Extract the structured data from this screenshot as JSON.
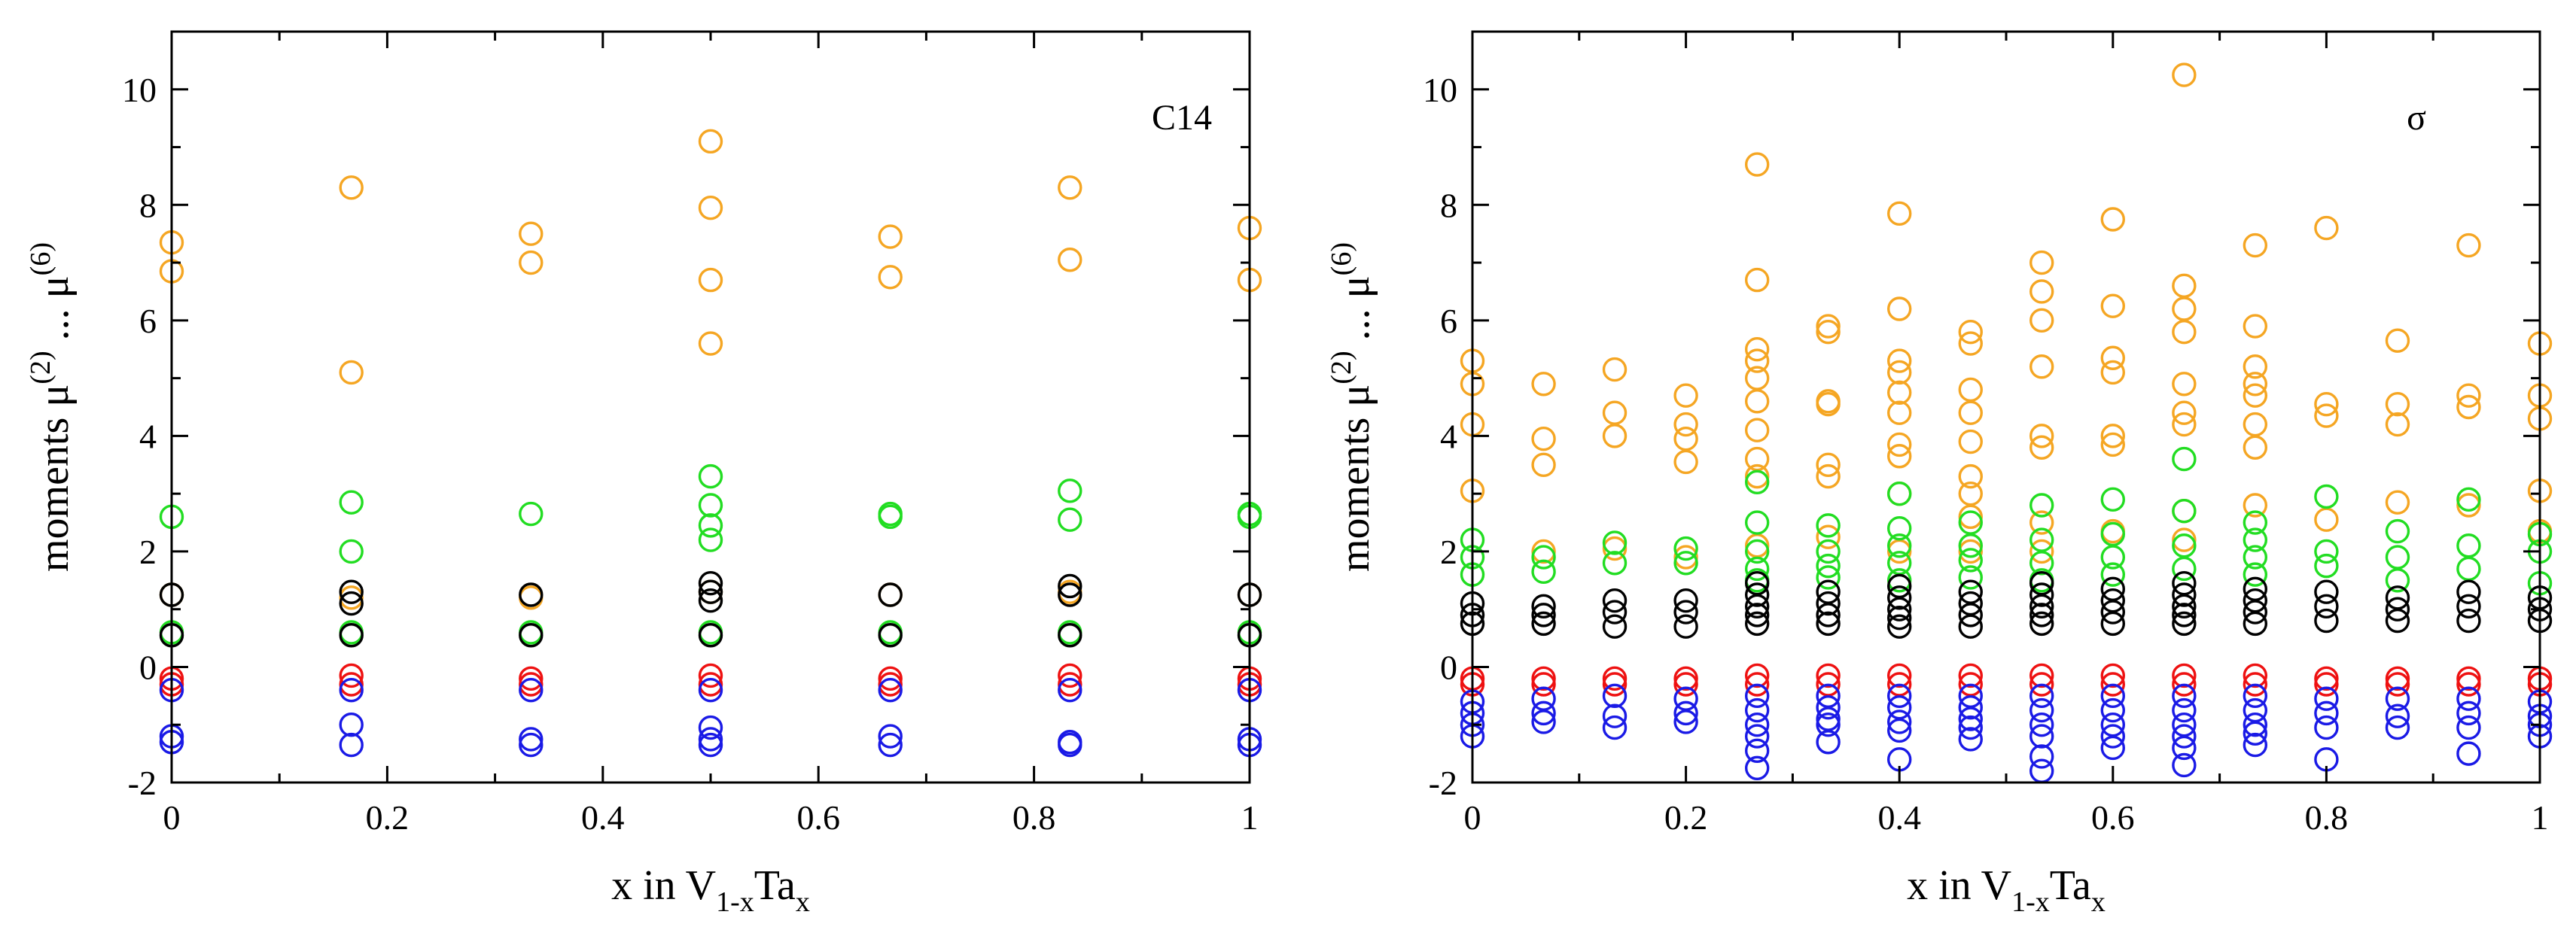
{
  "chart_data": [
    {
      "type": "scatter",
      "panel_label": "C14",
      "xlabel": {
        "base": "x in V",
        "sub1": "1-x",
        "mid": "Ta",
        "sub2": "x"
      },
      "ylabel": {
        "base": "moments μ",
        "sup1": "(2)",
        "mid": " ... μ",
        "sup2": "(6)"
      },
      "xlim": [
        0,
        1
      ],
      "ylim": [
        -2,
        11
      ],
      "xticks": [
        0,
        0.2,
        0.4,
        0.6,
        0.8,
        1
      ],
      "xtick_labels": [
        "0",
        "0.2",
        "0.4",
        "0.6",
        "0.8",
        "1"
      ],
      "yticks": [
        -2,
        0,
        2,
        4,
        6,
        8,
        10
      ],
      "ytick_labels": [
        "-2",
        "0",
        "2",
        "4",
        "6",
        "8",
        "10"
      ],
      "colors": {
        "orange": "#f5a623",
        "green": "#22dd22",
        "black": "#000000",
        "red": "#ee1111",
        "blue": "#1a1ae6"
      },
      "series": [
        {
          "name": "orange",
          "x": [
            0,
            0,
            0,
            0.1667,
            0.1667,
            0.1667,
            0.3333,
            0.3333,
            0.3333,
            0.5,
            0.5,
            0.5,
            0.5,
            0.5,
            0.6667,
            0.6667,
            0.6667,
            0.8333,
            0.8333,
            0.8333,
            1,
            1,
            1
          ],
          "y": [
            7.35,
            6.85,
            1.25,
            8.3,
            5.1,
            1.2,
            7.5,
            7.0,
            1.2,
            9.1,
            7.95,
            6.7,
            5.6,
            1.3,
            7.45,
            6.75,
            1.25,
            8.3,
            7.05,
            1.3,
            7.6,
            6.7,
            1.25
          ]
        },
        {
          "name": "green",
          "x": [
            0,
            0,
            0.1667,
            0.1667,
            0.1667,
            0.3333,
            0.3333,
            0.5,
            0.5,
            0.5,
            0.5,
            0.5,
            0.6667,
            0.6667,
            0.6667,
            0.8333,
            0.8333,
            0.8333,
            1,
            1,
            1
          ],
          "y": [
            2.6,
            0.6,
            2.85,
            2.0,
            0.6,
            2.65,
            0.6,
            3.3,
            2.8,
            2.45,
            2.2,
            0.6,
            2.6,
            2.65,
            0.6,
            3.05,
            2.55,
            0.6,
            2.6,
            2.65,
            0.6
          ]
        },
        {
          "name": "black",
          "x": [
            0,
            0,
            0.1667,
            0.1667,
            0.1667,
            0.3333,
            0.3333,
            0.5,
            0.5,
            0.5,
            0.5,
            0.6667,
            0.6667,
            0.8333,
            0.8333,
            0.8333,
            1,
            1
          ],
          "y": [
            1.25,
            0.55,
            1.3,
            1.1,
            0.55,
            1.25,
            0.55,
            1.45,
            1.3,
            1.15,
            0.55,
            1.25,
            0.55,
            1.4,
            1.25,
            0.55,
            1.25,
            0.55
          ]
        },
        {
          "name": "red",
          "x": [
            0,
            0,
            0.1667,
            0.1667,
            0.3333,
            0.3333,
            0.5,
            0.5,
            0.6667,
            0.6667,
            0.8333,
            0.8333,
            1,
            1
          ],
          "y": [
            -0.2,
            -0.3,
            -0.15,
            -0.3,
            -0.2,
            -0.3,
            -0.15,
            -0.3,
            -0.2,
            -0.3,
            -0.15,
            -0.3,
            -0.2,
            -0.3
          ]
        },
        {
          "name": "blue",
          "x": [
            0,
            0,
            0,
            0.1667,
            0.1667,
            0.1667,
            0.3333,
            0.3333,
            0.3333,
            0.5,
            0.5,
            0.5,
            0.5,
            0.6667,
            0.6667,
            0.6667,
            0.8333,
            0.8333,
            0.8333,
            1,
            1,
            1
          ],
          "y": [
            -0.4,
            -1.2,
            -1.3,
            -0.4,
            -1.0,
            -1.35,
            -0.4,
            -1.25,
            -1.35,
            -0.4,
            -1.05,
            -1.25,
            -1.35,
            -0.4,
            -1.2,
            -1.35,
            -0.4,
            -1.3,
            -1.35,
            -0.4,
            -1.25,
            -1.35
          ]
        }
      ]
    },
    {
      "type": "scatter",
      "panel_label": "σ",
      "xlabel": {
        "base": "x in V",
        "sub1": "1-x",
        "mid": "Ta",
        "sub2": "x"
      },
      "ylabel": {
        "base": "moments μ",
        "sup1": "(2)",
        "mid": " ... μ",
        "sup2": "(6)"
      },
      "xlim": [
        0,
        1
      ],
      "ylim": [
        -2,
        11
      ],
      "xticks": [
        0,
        0.2,
        0.4,
        0.6,
        0.8,
        1
      ],
      "xtick_labels": [
        "0",
        "0.2",
        "0.4",
        "0.6",
        "0.8",
        "1"
      ],
      "yticks": [
        -2,
        0,
        2,
        4,
        6,
        8,
        10
      ],
      "ytick_labels": [
        "-2",
        "0",
        "2",
        "4",
        "6",
        "8",
        "10"
      ],
      "colors": {
        "orange": "#f5a623",
        "green": "#22dd22",
        "black": "#000000",
        "red": "#ee1111",
        "blue": "#1a1ae6"
      },
      "series": [
        {
          "name": "orange",
          "x": [
            0,
            0,
            0,
            0,
            0.0667,
            0.0667,
            0.0667,
            0.0667,
            0.1333,
            0.1333,
            0.1333,
            0.1333,
            0.2,
            0.2,
            0.2,
            0.2,
            0.2,
            0.2667,
            0.2667,
            0.2667,
            0.2667,
            0.2667,
            0.2667,
            0.2667,
            0.2667,
            0.2667,
            0.2667,
            0.3333,
            0.3333,
            0.3333,
            0.3333,
            0.3333,
            0.3333,
            0.3333,
            0.4,
            0.4,
            0.4,
            0.4,
            0.4,
            0.4,
            0.4,
            0.4,
            0.4,
            0.4,
            0.4667,
            0.4667,
            0.4667,
            0.4667,
            0.4667,
            0.4667,
            0.4667,
            0.4667,
            0.4667,
            0.5333,
            0.5333,
            0.5333,
            0.5333,
            0.5333,
            0.5333,
            0.5333,
            0.5333,
            0.6,
            0.6,
            0.6,
            0.6,
            0.6,
            0.6,
            0.6,
            0.6667,
            0.6667,
            0.6667,
            0.6667,
            0.6667,
            0.6667,
            0.6667,
            0.6667,
            0.6667,
            0.7333,
            0.7333,
            0.7333,
            0.7333,
            0.7333,
            0.7333,
            0.7333,
            0.7333,
            0.8,
            0.8,
            0.8,
            0.8,
            0.8667,
            0.8667,
            0.8667,
            0.8667,
            0.9333,
            0.9333,
            0.9333,
            0.9333,
            1,
            1,
            1,
            1,
            1
          ],
          "y": [
            5.3,
            4.9,
            4.2,
            3.05,
            4.9,
            3.95,
            3.5,
            2.0,
            5.15,
            4.4,
            4.0,
            2.05,
            4.7,
            4.2,
            3.95,
            3.55,
            1.9,
            8.7,
            6.7,
            5.5,
            5.3,
            5.0,
            4.6,
            4.1,
            3.6,
            3.3,
            2.1,
            5.9,
            5.8,
            4.6,
            4.55,
            3.5,
            3.3,
            2.25,
            7.85,
            6.2,
            5.3,
            5.1,
            4.75,
            4.4,
            3.85,
            3.65,
            3.0,
            2.0,
            5.8,
            5.6,
            4.8,
            4.4,
            3.9,
            3.3,
            3.0,
            2.6,
            2.0,
            7.0,
            6.5,
            6.0,
            5.2,
            4.0,
            3.8,
            2.5,
            2.0,
            7.75,
            6.25,
            5.35,
            5.1,
            4.0,
            3.85,
            2.35,
            10.25,
            6.6,
            6.2,
            5.8,
            4.9,
            4.4,
            4.2,
            2.7,
            2.2,
            7.3,
            5.9,
            5.2,
            4.9,
            4.7,
            4.2,
            3.8,
            2.8,
            7.6,
            4.55,
            4.35,
            2.55,
            5.65,
            4.55,
            4.2,
            2.85,
            7.3,
            4.7,
            4.5,
            2.8,
            5.6,
            4.7,
            4.3,
            3.05,
            2.35
          ]
        },
        {
          "name": "green",
          "x": [
            0,
            0,
            0,
            0.0667,
            0.0667,
            0.1333,
            0.1333,
            0.2,
            0.2,
            0.2667,
            0.2667,
            0.2667,
            0.2667,
            0.2667,
            0.3333,
            0.3333,
            0.3333,
            0.3333,
            0.4,
            0.4,
            0.4,
            0.4,
            0.4,
            0.4667,
            0.4667,
            0.4667,
            0.4667,
            0.5333,
            0.5333,
            0.5333,
            0.5333,
            0.6,
            0.6,
            0.6,
            0.6,
            0.6667,
            0.6667,
            0.6667,
            0.6667,
            0.7333,
            0.7333,
            0.7333,
            0.7333,
            0.8,
            0.8,
            0.8,
            0.8667,
            0.8667,
            0.8667,
            0.9333,
            0.9333,
            0.9333,
            1,
            1,
            1
          ],
          "y": [
            2.2,
            1.9,
            1.6,
            1.9,
            1.65,
            2.15,
            1.8,
            2.05,
            1.8,
            3.2,
            2.5,
            2.0,
            1.7,
            1.5,
            2.45,
            2.0,
            1.75,
            1.55,
            3.0,
            2.4,
            2.1,
            1.8,
            1.5,
            2.5,
            2.1,
            1.85,
            1.55,
            2.8,
            2.2,
            1.8,
            1.5,
            2.9,
            2.3,
            1.9,
            1.6,
            3.6,
            2.7,
            2.1,
            1.7,
            2.5,
            2.2,
            1.9,
            1.6,
            2.95,
            2.0,
            1.75,
            2.35,
            1.9,
            1.5,
            2.9,
            2.1,
            1.7,
            2.3,
            2.0,
            1.45
          ]
        },
        {
          "name": "black",
          "x": [
            0,
            0,
            0,
            0.0667,
            0.0667,
            0.0667,
            0.1333,
            0.1333,
            0.1333,
            0.2,
            0.2,
            0.2,
            0.2667,
            0.2667,
            0.2667,
            0.2667,
            0.2667,
            0.3333,
            0.3333,
            0.3333,
            0.3333,
            0.4,
            0.4,
            0.4,
            0.4,
            0.4,
            0.4667,
            0.4667,
            0.4667,
            0.4667,
            0.5333,
            0.5333,
            0.5333,
            0.5333,
            0.5333,
            0.6,
            0.6,
            0.6,
            0.6,
            0.6667,
            0.6667,
            0.6667,
            0.6667,
            0.6667,
            0.7333,
            0.7333,
            0.7333,
            0.7333,
            0.8,
            0.8,
            0.8,
            0.8667,
            0.8667,
            0.8667,
            0.9333,
            0.9333,
            0.9333,
            1,
            1,
            1
          ],
          "y": [
            1.1,
            0.9,
            0.75,
            1.05,
            0.9,
            0.75,
            1.15,
            0.95,
            0.7,
            1.15,
            0.95,
            0.7,
            1.45,
            1.25,
            1.05,
            0.9,
            0.75,
            1.3,
            1.1,
            0.9,
            0.75,
            1.4,
            1.2,
            1.0,
            0.85,
            0.7,
            1.3,
            1.1,
            0.9,
            0.7,
            1.45,
            1.25,
            1.05,
            0.9,
            0.75,
            1.35,
            1.15,
            0.95,
            0.75,
            1.45,
            1.25,
            1.05,
            0.9,
            0.75,
            1.35,
            1.15,
            0.95,
            0.75,
            1.3,
            1.05,
            0.8,
            1.2,
            1.0,
            0.8,
            1.3,
            1.05,
            0.8,
            1.2,
            1.0,
            0.8
          ]
        },
        {
          "name": "red",
          "x": [
            0,
            0,
            0.0667,
            0.0667,
            0.1333,
            0.1333,
            0.2,
            0.2,
            0.2667,
            0.2667,
            0.3333,
            0.3333,
            0.4,
            0.4,
            0.4667,
            0.4667,
            0.5333,
            0.5333,
            0.6,
            0.6,
            0.6667,
            0.6667,
            0.7333,
            0.7333,
            0.8,
            0.8,
            0.8667,
            0.8667,
            0.9333,
            0.9333,
            1,
            1
          ],
          "y": [
            -0.2,
            -0.3,
            -0.2,
            -0.3,
            -0.2,
            -0.3,
            -0.2,
            -0.3,
            -0.15,
            -0.3,
            -0.15,
            -0.3,
            -0.15,
            -0.3,
            -0.15,
            -0.3,
            -0.15,
            -0.3,
            -0.15,
            -0.3,
            -0.15,
            -0.3,
            -0.15,
            -0.3,
            -0.2,
            -0.3,
            -0.2,
            -0.3,
            -0.2,
            -0.3,
            -0.2,
            -0.3
          ]
        },
        {
          "name": "blue",
          "x": [
            0,
            0,
            0,
            0,
            0.0667,
            0.0667,
            0.0667,
            0.1333,
            0.1333,
            0.1333,
            0.2,
            0.2,
            0.2,
            0.2667,
            0.2667,
            0.2667,
            0.2667,
            0.2667,
            0.2667,
            0.3333,
            0.3333,
            0.3333,
            0.3333,
            0.3333,
            0.4,
            0.4,
            0.4,
            0.4,
            0.4,
            0.4667,
            0.4667,
            0.4667,
            0.4667,
            0.4667,
            0.5333,
            0.5333,
            0.5333,
            0.5333,
            0.5333,
            0.5333,
            0.6,
            0.6,
            0.6,
            0.6,
            0.6,
            0.6667,
            0.6667,
            0.6667,
            0.6667,
            0.6667,
            0.6667,
            0.7333,
            0.7333,
            0.7333,
            0.7333,
            0.7333,
            0.8,
            0.8,
            0.8,
            0.8,
            0.8667,
            0.8667,
            0.8667,
            0.9333,
            0.9333,
            0.9333,
            0.9333,
            1,
            1,
            1,
            1
          ],
          "y": [
            -0.6,
            -0.8,
            -1.0,
            -1.2,
            -0.55,
            -0.8,
            -0.95,
            -0.5,
            -0.85,
            -1.05,
            -0.55,
            -0.8,
            -0.95,
            -0.5,
            -0.75,
            -1.0,
            -1.2,
            -1.45,
            -1.75,
            -0.5,
            -0.7,
            -0.9,
            -1.0,
            -1.3,
            -0.5,
            -0.7,
            -0.95,
            -1.1,
            -1.6,
            -0.5,
            -0.7,
            -0.9,
            -1.05,
            -1.25,
            -0.5,
            -0.75,
            -1.0,
            -1.2,
            -1.55,
            -1.8,
            -0.5,
            -0.75,
            -1.0,
            -1.2,
            -1.4,
            -0.5,
            -0.75,
            -1.0,
            -1.2,
            -1.4,
            -1.7,
            -0.5,
            -0.75,
            -1.0,
            -1.15,
            -1.35,
            -0.55,
            -0.8,
            -1.05,
            -1.6,
            -0.55,
            -0.85,
            -1.05,
            -0.55,
            -0.8,
            -1.05,
            -1.5,
            -0.6,
            -0.85,
            -1.0,
            -1.2
          ]
        }
      ]
    }
  ]
}
